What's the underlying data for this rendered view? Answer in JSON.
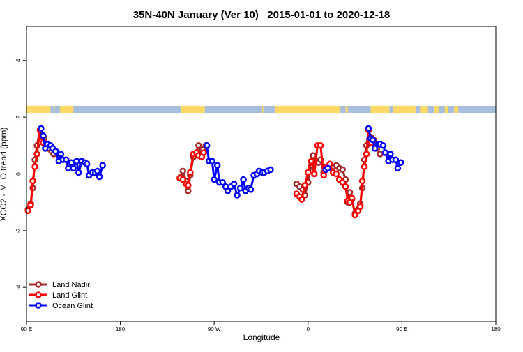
{
  "chart_data": {
    "type": "line",
    "title": "35N-40N January (Ver 10)   2015-01-01 to 2020-12-18",
    "xlabel": "Longitude",
    "ylabel": "XCO2 - MLO trend (ppm)",
    "xlim": [
      90,
      540
    ],
    "ylim": [
      -5.2,
      5.2
    ],
    "x_ticks": [
      {
        "value": 90,
        "label": "90 E"
      },
      {
        "value": 180,
        "label": "180"
      },
      {
        "value": 270,
        "label": "90 W"
      },
      {
        "value": 360,
        "label": "0"
      },
      {
        "value": 450,
        "label": "90 E"
      },
      {
        "value": 540,
        "label": "180"
      }
    ],
    "y_ticks": [
      {
        "value": 4,
        "label": "4"
      },
      {
        "value": 2,
        "label": "2"
      },
      {
        "value": 0,
        "label": "0"
      },
      {
        "value": -2,
        "label": "-2"
      },
      {
        "value": -4,
        "label": "-4"
      }
    ],
    "legend_position": "bottom-left",
    "land_color": "#FFD966",
    "ocean_color": "#A7BFDD",
    "land_band": {
      "y_range": [
        2.15,
        2.4
      ],
      "land_segments": [
        [
          90,
          113
        ],
        [
          116,
          117
        ],
        [
          122,
          135
        ],
        [
          238,
          261
        ],
        [
          316,
          317
        ],
        [
          328,
          391
        ],
        [
          396,
          398
        ],
        [
          420,
          438
        ],
        [
          441,
          463
        ],
        [
          468,
          475
        ],
        [
          481,
          485
        ],
        [
          491,
          494
        ],
        [
          500,
          504
        ]
      ]
    },
    "series": [
      {
        "name": "Land Nadir",
        "color": "#A52A2A",
        "points": [
          [
            91.5,
            -1.25
          ],
          [
            94,
            -1.05
          ],
          [
            96,
            -0.5
          ],
          [
            98,
            0.5
          ],
          [
            100,
            1.0
          ],
          [
            103,
            1.55
          ],
          [
            105,
            1.3
          ],
          [
            107,
            1.25
          ],
          [
            109,
            1.0
          ],
          [
            111,
            0.9
          ],
          [
            114,
            0.8
          ],
          [
            116,
            0.7
          ],
          [
            238,
            -0.1
          ],
          [
            240,
            0.1
          ],
          [
            243,
            -0.25
          ],
          [
            245,
            -0.6
          ],
          [
            247,
            -0.05
          ],
          [
            250,
            0.6
          ],
          [
            252,
            0.7
          ],
          [
            255,
            1.0
          ],
          [
            257,
            0.65
          ],
          [
            259,
            0.85
          ],
          [
            262,
            1.0
          ],
          [
            349,
            -0.35
          ],
          [
            352,
            -0.45
          ],
          [
            355,
            -0.55
          ],
          [
            357,
            -0.75
          ],
          [
            360,
            -0.3
          ],
          [
            363,
            0.3
          ],
          [
            365,
            0.65
          ],
          [
            368,
            0.45
          ],
          [
            370,
            0.4
          ],
          [
            372,
            0.5
          ],
          [
            375,
            0.05
          ],
          [
            378,
            0.2
          ],
          [
            381,
            0.35
          ],
          [
            384,
            0.25
          ],
          [
            387,
            0.3
          ],
          [
            390,
            0.2
          ],
          [
            393,
            0.15
          ],
          [
            396,
            -0.2
          ],
          [
            398,
            -1.0
          ],
          [
            400,
            -0.65
          ],
          [
            402,
            -0.9
          ],
          [
            405,
            -1.4
          ],
          [
            408,
            -1.25
          ],
          [
            410,
            -1.05
          ],
          [
            412,
            -0.5
          ],
          [
            414,
            0.5
          ],
          [
            416,
            1.0
          ],
          [
            418,
            1.55
          ],
          [
            420,
            1.3
          ],
          [
            423,
            1.2
          ],
          [
            426,
            0.9
          ],
          [
            429,
            0.7
          ]
        ]
      },
      {
        "name": "Land Glint",
        "color": "#FF0000",
        "points": [
          [
            91.5,
            -1.3
          ],
          [
            94,
            -1.1
          ],
          [
            96,
            -0.25
          ],
          [
            98,
            0.25
          ],
          [
            100,
            0.7
          ],
          [
            103,
            1.55
          ],
          [
            106,
            1.1
          ],
          [
            237,
            -0.15
          ],
          [
            240,
            -0.2
          ],
          [
            243,
            -0.35
          ],
          [
            245,
            -0.4
          ],
          [
            247,
            0.05
          ],
          [
            250,
            0.7
          ],
          [
            253,
            0.75
          ],
          [
            255,
            0.65
          ],
          [
            258,
            0.6
          ],
          [
            260,
            0.75
          ],
          [
            349,
            -0.7
          ],
          [
            352,
            -0.8
          ],
          [
            354,
            -0.9
          ],
          [
            357,
            -0.4
          ],
          [
            360,
            0.05
          ],
          [
            363,
            0.45
          ],
          [
            366,
            0.0
          ],
          [
            369,
            1.0
          ],
          [
            372,
            1.0
          ],
          [
            375,
            -0.05
          ],
          [
            378,
            0.25
          ],
          [
            381,
            0.35
          ],
          [
            384,
            0.05
          ],
          [
            387,
            0.0
          ],
          [
            390,
            -0.2
          ],
          [
            393,
            -0.3
          ],
          [
            396,
            -0.45
          ],
          [
            398,
            -0.95
          ],
          [
            400,
            -1.0
          ],
          [
            402,
            -0.85
          ],
          [
            405,
            -1.45
          ],
          [
            408,
            -1.3
          ],
          [
            410,
            -1.15
          ],
          [
            412,
            -0.25
          ],
          [
            414,
            0.25
          ],
          [
            416,
            0.7
          ],
          [
            418,
            1.55
          ],
          [
            421,
            1.1
          ]
        ]
      },
      {
        "name": "Ocean Glint",
        "color": "#0000FF",
        "points": [
          [
            104,
            1.6
          ],
          [
            106,
            1.35
          ],
          [
            108,
            0.9
          ],
          [
            110,
            1.05
          ],
          [
            113,
            1.0
          ],
          [
            115,
            0.9
          ],
          [
            118,
            0.8
          ],
          [
            121,
            0.45
          ],
          [
            123,
            0.7
          ],
          [
            125,
            0.5
          ],
          [
            128,
            0.5
          ],
          [
            130,
            0.2
          ],
          [
            133,
            0.4
          ],
          [
            135,
            0.2
          ],
          [
            138,
            0.45
          ],
          [
            140,
            0.05
          ],
          [
            143,
            0.45
          ],
          [
            146,
            0.4
          ],
          [
            148,
            0.35
          ],
          [
            150,
            -0.05
          ],
          [
            153,
            0.05
          ],
          [
            156,
            0.05
          ],
          [
            158,
            0.1
          ],
          [
            160,
            -0.1
          ],
          [
            163,
            0.3
          ],
          [
            263,
            1.0
          ],
          [
            265,
            0.45
          ],
          [
            268,
            0.45
          ],
          [
            270,
            -0.2
          ],
          [
            273,
            0.3
          ],
          [
            275,
            -0.3
          ],
          [
            278,
            -0.3
          ],
          [
            281,
            -0.45
          ],
          [
            283,
            -0.6
          ],
          [
            286,
            -0.45
          ],
          [
            289,
            -0.35
          ],
          [
            292,
            -0.75
          ],
          [
            295,
            -0.5
          ],
          [
            298,
            -0.2
          ],
          [
            300,
            -0.6
          ],
          [
            303,
            -0.5
          ],
          [
            305,
            -0.55
          ],
          [
            308,
            -0.05
          ],
          [
            311,
            0.0
          ],
          [
            313,
            0.1
          ],
          [
            316,
            0.05
          ],
          [
            318,
            0.05
          ],
          [
            321,
            0.1
          ],
          [
            324,
            0.15
          ],
          [
            377,
            0.15
          ],
          [
            379,
            0.2
          ],
          [
            418,
            1.6
          ],
          [
            420,
            1.25
          ],
          [
            422,
            1.2
          ],
          [
            424,
            0.9
          ],
          [
            427,
            1.05
          ],
          [
            429,
            1.05
          ],
          [
            432,
            1.0
          ],
          [
            434,
            0.75
          ],
          [
            437,
            0.45
          ],
          [
            439,
            0.7
          ],
          [
            441,
            0.5
          ],
          [
            444,
            0.5
          ],
          [
            446,
            0.2
          ],
          [
            449,
            0.4
          ]
        ]
      }
    ]
  }
}
